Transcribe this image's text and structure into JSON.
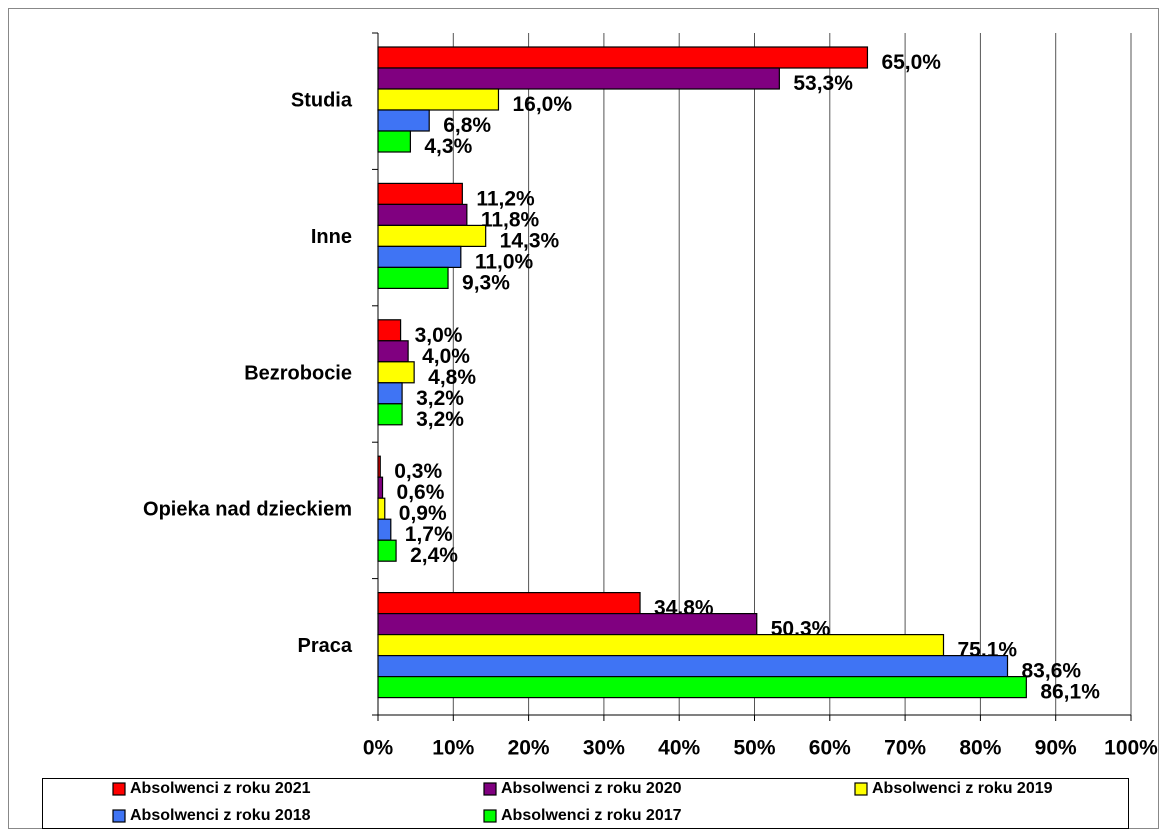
{
  "chart_data": {
    "type": "bar",
    "orientation": "horizontal",
    "categories": [
      "Studia",
      "Inne",
      "Bezrobocie",
      "Opieka nad dzieckiem",
      "Praca"
    ],
    "series": [
      {
        "name": "Absolwenci z roku 2021",
        "color": "#ff0000",
        "values": [
          65.0,
          11.2,
          3.0,
          0.3,
          34.8
        ],
        "value_labels": [
          "65,0%",
          "11,2%",
          "3,0%",
          "0,3%",
          "34,8%"
        ]
      },
      {
        "name": "Absolwenci z roku 2020",
        "color": "#800080",
        "values": [
          53.3,
          11.8,
          4.0,
          0.6,
          50.3
        ],
        "value_labels": [
          "53,3%",
          "11,8%",
          "4,0%",
          "0,6%",
          "50,3%"
        ]
      },
      {
        "name": "Absolwenci z roku 2019",
        "color": "#ffff00",
        "values": [
          16.0,
          14.3,
          4.8,
          0.9,
          75.1
        ],
        "value_labels": [
          "16,0%",
          "14,3%",
          "4,8%",
          "0,9%",
          "75,1%"
        ]
      },
      {
        "name": "Absolwenci z roku 2018",
        "color": "#3f74f4",
        "values": [
          6.8,
          11.0,
          3.2,
          1.7,
          83.6
        ],
        "value_labels": [
          "6,8%",
          "11,0%",
          "3,2%",
          "1,7%",
          "83,6%"
        ]
      },
      {
        "name": "Absolwenci z roku 2017",
        "color": "#00ff00",
        "values": [
          4.3,
          9.3,
          3.2,
          2.4,
          86.1
        ],
        "value_labels": [
          "4,3%",
          "9,3%",
          "3,2%",
          "2,4%",
          "86,1%"
        ]
      }
    ],
    "xlim": [
      0,
      100
    ],
    "xticks": [
      {
        "value": 0,
        "label": "0%"
      },
      {
        "value": 10,
        "label": "10%"
      },
      {
        "value": 20,
        "label": "20%"
      },
      {
        "value": 30,
        "label": "30%"
      },
      {
        "value": 40,
        "label": "40%"
      },
      {
        "value": 50,
        "label": "50%"
      },
      {
        "value": 60,
        "label": "60%"
      },
      {
        "value": 70,
        "label": "70%"
      },
      {
        "value": 80,
        "label": "80%"
      },
      {
        "value": 90,
        "label": "90%"
      },
      {
        "value": 100,
        "label": "100%"
      }
    ],
    "grid": true,
    "legend": "bottom"
  }
}
